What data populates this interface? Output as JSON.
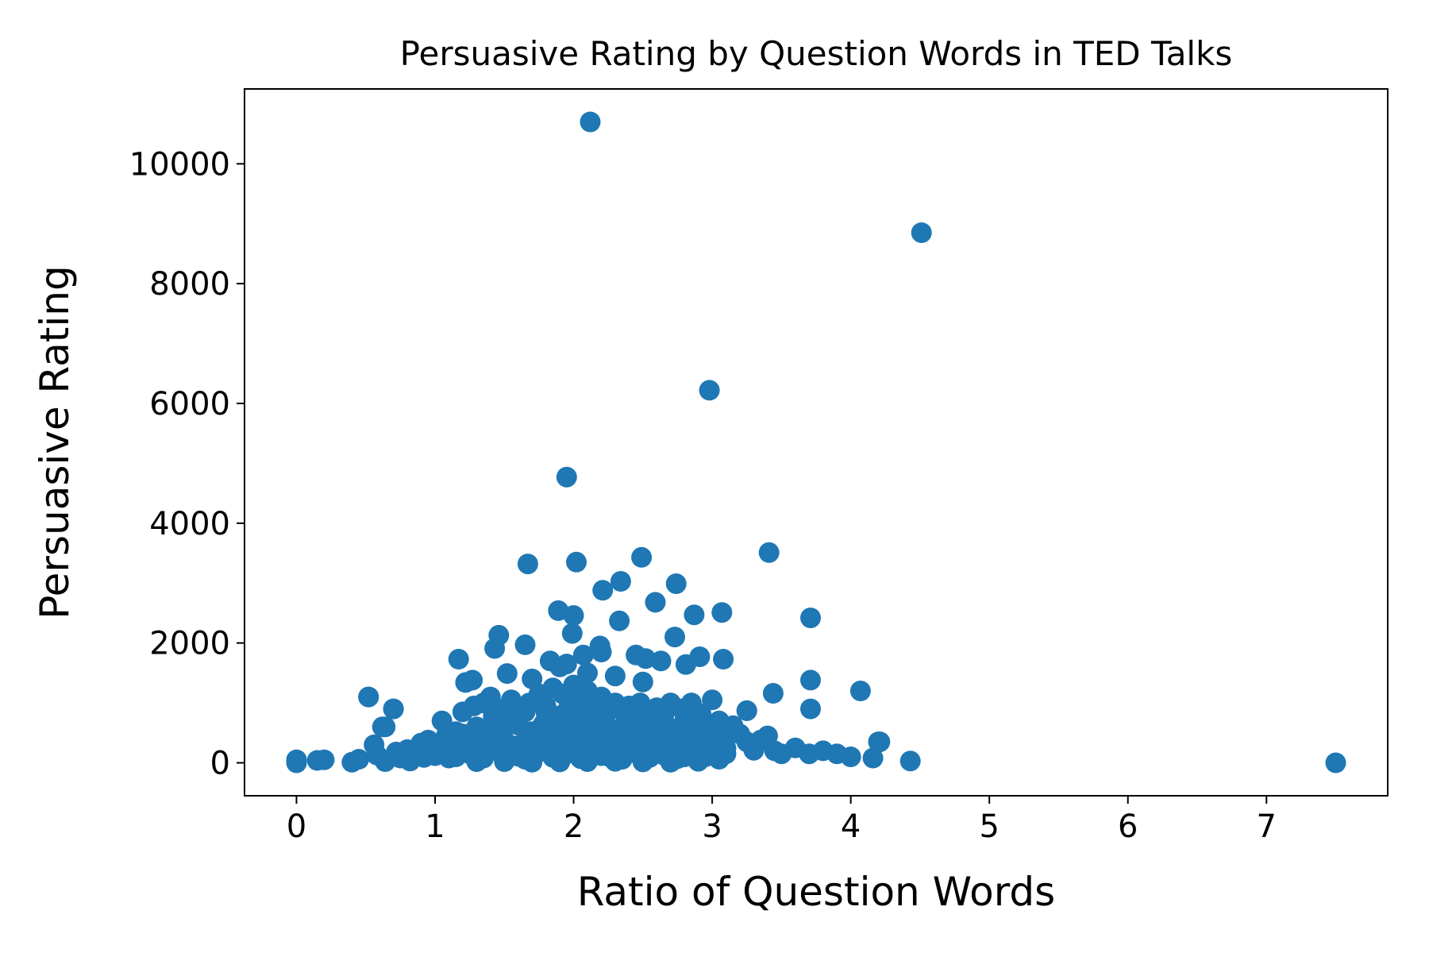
{
  "chart_data": {
    "type": "scatter",
    "title": "Persuasive Rating by Question Words in TED Talks",
    "xlabel": "Ratio of Question Words",
    "ylabel": "Persuasive Rating",
    "xlim": [
      -0.375,
      7.875
    ],
    "ylim": [
      -550,
      11250
    ],
    "xticks": [
      0,
      1,
      2,
      3,
      4,
      5,
      6,
      7
    ],
    "yticks": [
      0,
      2000,
      4000,
      6000,
      8000,
      10000
    ],
    "grid": false,
    "legend": "none",
    "marker_color": "#1f77b4",
    "series": [
      {
        "x": [
          0.0,
          0.0,
          0.15,
          0.2,
          0.4,
          0.45,
          0.52,
          0.56,
          0.58,
          0.62,
          0.64,
          0.7,
          0.72,
          0.75,
          0.8,
          0.82,
          0.85,
          0.88,
          0.9,
          0.92,
          0.95,
          0.98,
          1.0,
          1.02,
          1.05,
          1.08,
          1.1,
          1.12,
          1.15,
          1.18,
          1.2,
          1.22,
          1.25,
          1.28,
          1.3,
          1.33,
          1.35,
          1.38,
          1.4,
          1.42,
          1.45,
          1.48,
          1.5,
          1.52,
          1.55,
          1.58,
          1.6,
          1.62,
          1.65,
          1.66,
          1.68,
          1.7,
          1.72,
          1.75,
          1.78,
          1.8,
          1.82,
          1.85,
          1.88,
          1.9,
          1.92,
          1.94,
          1.96,
          1.98,
          2.0,
          2.02,
          2.04,
          2.06,
          2.08,
          2.1,
          2.12,
          2.14,
          2.16,
          2.18,
          2.2,
          2.22,
          2.25,
          2.28,
          2.3,
          2.32,
          2.35,
          2.38,
          2.4,
          2.42,
          2.45,
          2.48,
          2.5,
          2.52,
          2.55,
          2.58,
          2.6,
          2.62,
          2.65,
          2.68,
          2.7,
          2.72,
          2.75,
          2.78,
          2.8,
          2.82,
          2.85,
          2.88,
          2.9,
          2.92,
          2.95,
          2.98,
          3.0,
          3.02,
          3.05,
          3.08,
          3.1,
          3.15,
          3.2,
          3.25,
          3.3,
          3.35,
          3.4,
          3.45,
          3.5,
          3.6,
          3.7,
          3.8,
          3.9,
          4.0,
          4.16,
          4.2,
          1.15,
          1.25,
          1.35,
          1.45,
          1.55,
          1.65,
          1.75,
          1.85,
          1.95,
          2.05,
          2.15,
          2.25,
          2.35,
          2.45,
          2.55,
          2.65,
          2.75,
          2.85,
          2.95,
          3.05,
          1.3,
          1.5,
          1.7,
          1.9,
          2.1,
          2.3,
          2.5,
          2.7,
          2.9,
          1.4,
          1.6,
          1.8,
          2.0,
          2.2,
          2.4,
          2.6,
          2.8,
          1.2,
          1.4,
          1.6,
          1.8,
          2.0,
          2.2,
          2.4,
          2.6,
          2.8,
          3.0,
          1.1,
          1.3,
          1.5,
          1.7,
          1.9,
          2.1,
          2.3,
          2.5,
          2.7,
          2.9,
          3.1,
          3.3,
          1.5,
          1.7,
          1.9,
          2.1,
          2.3,
          2.5,
          2.7,
          1.3,
          1.6,
          1.9,
          2.2,
          2.5,
          2.8,
          1.7,
          1.9,
          2.1,
          2.3,
          2.5,
          1.83,
          1.95,
          2.07,
          2.2,
          2.45,
          2.63,
          3.25,
          2.12,
          4.51,
          2.98,
          1.95,
          3.41,
          1.67,
          2.02,
          2.49,
          2.74,
          2.34,
          2.21,
          2.59,
          3.07,
          2.87,
          1.89,
          2.0,
          3.71,
          2.33,
          1.46,
          2.73,
          2.19,
          1.65,
          1.43,
          2.52,
          2.91,
          3.08,
          1.17,
          2.81,
          1.99,
          1.52,
          1.27,
          1.22,
          3.71,
          4.07,
          3.44,
          0.52,
          3.71,
          0.7,
          0.64,
          3.25,
          4.21,
          4.43,
          7.5
        ],
        "y": [
          50,
          0,
          40,
          50,
          10,
          60,
          1100,
          300,
          130,
          600,
          20,
          900,
          180,
          80,
          220,
          30,
          150,
          260,
          330,
          90,
          380,
          200,
          120,
          300,
          700,
          450,
          80,
          320,
          520,
          190,
          850,
          400,
          250,
          950,
          600,
          380,
          1000,
          220,
          1100,
          780,
          350,
          500,
          900,
          650,
          1050,
          280,
          700,
          150,
          850,
          400,
          1000,
          520,
          250,
          1150,
          640,
          950,
          330,
          1250,
          780,
          500,
          1150,
          280,
          900,
          650,
          1300,
          420,
          1050,
          800,
          300,
          1200,
          560,
          950,
          180,
          720,
          1100,
          420,
          860,
          300,
          1000,
          560,
          200,
          750,
          950,
          400,
          680,
          1000,
          330,
          850,
          540,
          180,
          920,
          460,
          780,
          220,
          1000,
          560,
          300,
          900,
          700,
          420,
          1000,
          250,
          650,
          820,
          380,
          560,
          1050,
          300,
          700,
          480,
          150,
          620,
          480,
          350,
          280,
          380,
          450,
          200,
          150,
          250,
          150,
          200,
          150,
          100,
          80,
          350,
          100,
          150,
          80,
          200,
          120,
          60,
          180,
          90,
          150,
          70,
          200,
          110,
          60,
          160,
          90,
          130,
          70,
          180,
          100,
          60,
          20,
          40,
          10,
          30,
          20,
          50,
          15,
          30,
          25,
          600,
          750,
          850,
          920,
          880,
          820,
          700,
          650,
          480,
          560,
          630,
          720,
          760,
          690,
          640,
          590,
          540,
          500,
          260,
          300,
          380,
          420,
          460,
          430,
          390,
          350,
          310,
          280,
          240,
          210,
          20,
          35,
          15,
          40,
          25,
          30,
          10,
          90,
          110,
          70,
          120,
          80,
          100,
          1400,
          1600,
          1500,
          1450,
          1350,
          1700,
          1650,
          1800,
          1850,
          1800,
          1700,
          870,
          10700,
          8850,
          6220,
          4770,
          3510,
          3320,
          3350,
          3430,
          2990,
          3030,
          2880,
          2680,
          2510,
          2470,
          2540,
          2460,
          2420,
          2370,
          2130,
          2100,
          1950,
          1970,
          1910,
          1740,
          1770,
          1730,
          1730,
          1640,
          2160,
          1490,
          1380,
          1340,
          1380,
          1200,
          1160,
          1100,
          900,
          900,
          600,
          870,
          350,
          30,
          0
        ]
      }
    ]
  }
}
